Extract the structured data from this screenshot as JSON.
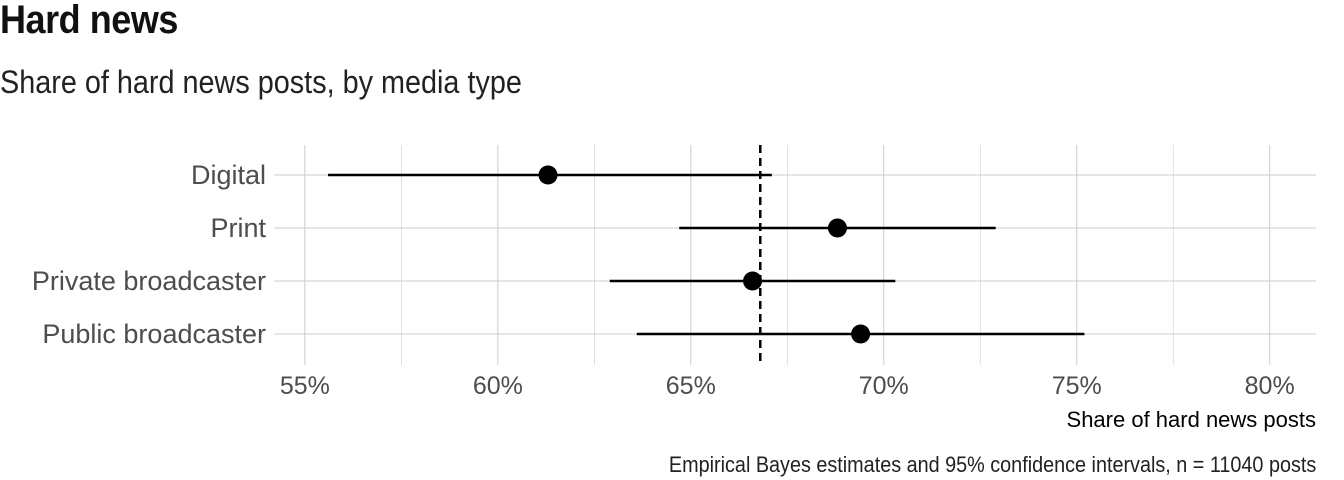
{
  "title": "Hard news",
  "subtitle": "Share of hard news posts, by media type",
  "caption": "Empirical Bayes estimates and 95% confidence intervals, n = 11040 posts",
  "chart_data": {
    "type": "scatter",
    "variant": "dot-and-whisker",
    "xlabel": "Share of hard news posts",
    "ylabel": "",
    "xlim": [
      54.2,
      81.2
    ],
    "x_ticks": [
      55,
      60,
      65,
      70,
      75,
      80
    ],
    "x_tick_labels": [
      "55%",
      "60%",
      "65%",
      "70%",
      "75%",
      "80%"
    ],
    "categories": [
      "Digital",
      "Print",
      "Private broadcaster",
      "Public broadcaster"
    ],
    "estimate": [
      61.3,
      68.8,
      66.6,
      69.4
    ],
    "ci_low": [
      55.6,
      64.7,
      62.9,
      63.6
    ],
    "ci_high": [
      67.1,
      72.9,
      70.3,
      75.2
    ],
    "reference_line": {
      "x": 66.8,
      "style": "dashed"
    },
    "grid": true,
    "colors": {
      "points": "#000000",
      "grid": "#cccccc",
      "reference": "#000000"
    }
  }
}
